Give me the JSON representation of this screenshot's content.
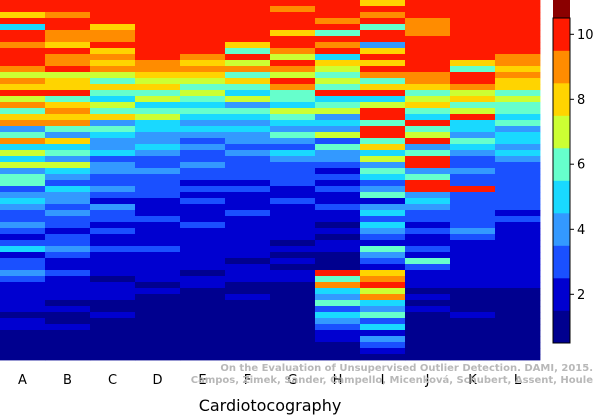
{
  "chart_data": {
    "type": "heatmap",
    "xlabel": "Cardiotocography",
    "categories": [
      "A",
      "B",
      "C",
      "D",
      "E",
      "F",
      "G",
      "H",
      "I",
      "J",
      "K",
      "L"
    ],
    "row_count": 60,
    "colorbar": {
      "min": 0.5,
      "max": 10.5,
      "ticks": [
        2,
        4,
        6,
        8,
        10
      ],
      "colors": [
        "#00008f",
        "#0000d0",
        "#1a50ff",
        "#3399ff",
        "#19d9ff",
        "#66ffcc",
        "#ccff33",
        "#ffd400",
        "#ff8c00",
        "#ff1a00",
        "#8b0000"
      ]
    },
    "columns": [
      [
        10,
        10,
        8,
        10,
        5,
        10,
        10,
        9,
        10,
        10,
        10,
        9,
        7,
        9,
        8,
        10,
        7,
        9,
        6,
        8,
        9,
        4,
        6,
        9,
        5,
        7,
        5,
        7,
        4,
        6,
        6,
        3,
        4,
        5,
        4,
        3,
        3,
        4,
        3,
        2,
        3,
        5,
        2,
        3,
        3,
        4,
        3,
        2,
        2,
        2,
        2,
        2,
        1,
        2,
        2,
        1,
        1,
        1,
        1,
        1
      ],
      [
        10,
        10,
        9,
        10,
        10,
        9,
        9,
        8,
        10,
        9,
        9,
        10,
        7,
        8,
        8,
        10,
        6,
        8,
        9,
        8,
        9,
        6,
        4,
        8,
        5,
        6,
        4,
        7,
        5,
        4,
        3,
        5,
        4,
        4,
        3,
        4,
        3,
        3,
        2,
        3,
        3,
        4,
        3,
        2,
        2,
        3,
        2,
        2,
        2,
        2,
        1,
        2,
        1,
        1,
        2,
        1,
        1,
        1,
        1,
        1
      ],
      [
        10,
        10,
        10,
        10,
        8,
        9,
        9,
        10,
        8,
        9,
        8,
        9,
        7,
        6,
        8,
        6,
        5,
        7,
        6,
        8,
        4,
        6,
        5,
        4,
        4,
        5,
        3,
        4,
        4,
        3,
        3,
        4,
        3,
        2,
        4,
        3,
        3,
        2,
        3,
        2,
        2,
        3,
        2,
        2,
        2,
        2,
        1,
        2,
        2,
        2,
        1,
        1,
        2,
        1,
        1,
        1,
        1,
        1,
        1,
        1
      ],
      [
        10,
        10,
        10,
        10,
        10,
        10,
        10,
        10,
        10,
        10,
        9,
        9,
        8,
        7,
        8,
        6,
        7,
        5,
        6,
        7,
        5,
        5,
        4,
        4,
        5,
        4,
        3,
        3,
        4,
        3,
        3,
        3,
        3,
        2,
        2,
        2,
        3,
        2,
        2,
        2,
        2,
        3,
        2,
        2,
        2,
        2,
        2,
        1,
        2,
        1,
        1,
        1,
        1,
        1,
        1,
        1,
        1,
        1,
        1,
        1
      ],
      [
        10,
        10,
        10,
        10,
        10,
        10,
        10,
        10,
        10,
        9,
        8,
        9,
        8,
        7,
        6,
        7,
        6,
        5,
        6,
        5,
        4,
        5,
        4,
        3,
        4,
        3,
        3,
        4,
        3,
        3,
        2,
        3,
        2,
        3,
        2,
        2,
        2,
        3,
        2,
        2,
        2,
        2,
        2,
        2,
        2,
        1,
        2,
        2,
        1,
        1,
        1,
        1,
        1,
        1,
        1,
        1,
        1,
        1,
        1,
        1
      ],
      [
        10,
        10,
        10,
        10,
        10,
        10,
        10,
        8,
        6,
        10,
        7,
        9,
        6,
        8,
        6,
        5,
        7,
        4,
        6,
        5,
        4,
        5,
        4,
        4,
        3,
        4,
        3,
        3,
        3,
        3,
        2,
        3,
        2,
        2,
        2,
        3,
        2,
        2,
        2,
        2,
        2,
        2,
        2,
        1,
        2,
        2,
        2,
        1,
        1,
        2,
        1,
        1,
        1,
        1,
        1,
        1,
        1,
        1,
        1,
        1
      ],
      [
        10,
        9,
        10,
        10,
        10,
        8,
        10,
        10,
        9,
        7,
        10,
        9,
        7,
        10,
        9,
        6,
        6,
        5,
        7,
        6,
        5,
        4,
        6,
        4,
        3,
        5,
        4,
        3,
        3,
        3,
        3,
        2,
        2,
        3,
        2,
        2,
        2,
        2,
        2,
        2,
        1,
        2,
        1,
        2,
        1,
        2,
        2,
        1,
        1,
        1,
        1,
        1,
        1,
        1,
        1,
        1,
        1,
        1,
        1,
        1
      ],
      [
        10,
        10,
        10,
        9,
        10,
        6,
        10,
        9,
        10,
        5,
        8,
        7,
        6,
        7,
        6,
        10,
        5,
        6,
        7,
        4,
        5,
        4,
        7,
        3,
        6,
        4,
        4,
        3,
        2,
        3,
        2,
        3,
        2,
        2,
        3,
        2,
        2,
        1,
        2,
        1,
        2,
        2,
        1,
        1,
        1,
        10,
        6,
        9,
        5,
        4,
        6,
        3,
        5,
        4,
        3,
        2,
        2,
        1,
        1,
        1
      ],
      [
        8,
        10,
        9,
        10,
        6,
        10,
        10,
        4,
        8,
        10,
        8,
        10,
        9,
        6,
        8,
        10,
        5,
        7,
        10,
        10,
        6,
        10,
        10,
        6,
        8,
        5,
        7,
        4,
        6,
        5,
        3,
        4,
        6,
        2,
        4,
        5,
        3,
        5,
        4,
        3,
        2,
        6,
        4,
        3,
        2,
        8,
        9,
        10,
        7,
        9,
        5,
        4,
        6,
        3,
        5,
        2,
        4,
        3,
        2,
        1
      ],
      [
        10,
        10,
        10,
        9,
        9,
        9,
        10,
        10,
        10,
        10,
        10,
        10,
        9,
        9,
        8,
        6,
        7,
        8,
        6,
        5,
        10,
        6,
        7,
        10,
        4,
        6,
        10,
        10,
        4,
        6,
        10,
        10,
        4,
        5,
        4,
        3,
        3,
        2,
        3,
        2,
        2,
        3,
        2,
        6,
        3,
        2,
        2,
        2,
        1,
        2,
        1,
        2,
        1,
        1,
        1,
        1,
        1,
        1,
        1,
        1
      ],
      [
        10,
        10,
        10,
        10,
        10,
        10,
        10,
        10,
        10,
        10,
        8,
        6,
        10,
        10,
        9,
        7,
        8,
        6,
        7,
        10,
        5,
        5,
        4,
        6,
        5,
        4,
        3,
        3,
        4,
        3,
        3,
        10,
        3,
        3,
        3,
        3,
        3,
        3,
        4,
        3,
        2,
        2,
        2,
        2,
        2,
        2,
        2,
        2,
        1,
        1,
        1,
        1,
        2,
        1,
        1,
        1,
        1,
        1,
        1,
        1
      ],
      [
        10,
        10,
        10,
        10,
        10,
        10,
        10,
        10,
        10,
        9,
        9,
        8,
        9,
        8,
        8,
        6,
        7,
        6,
        6,
        5,
        6,
        4,
        5,
        5,
        4,
        5,
        4,
        3,
        3,
        3,
        3,
        3,
        3,
        3,
        3,
        2,
        3,
        2,
        2,
        2,
        2,
        2,
        2,
        2,
        2,
        2,
        2,
        2,
        1,
        1,
        1,
        1,
        1,
        1,
        1,
        1,
        1,
        1,
        1,
        1
      ]
    ],
    "grid": "off",
    "legend": "colorbar-right"
  },
  "credit": {
    "line1": "On the Evaluation of Unsupervised Outlier Detection. DAMI, 2015.",
    "line2": "Campos, Zimek, Sander, Campello, Micenková, Schubert, Assent, Houle"
  }
}
